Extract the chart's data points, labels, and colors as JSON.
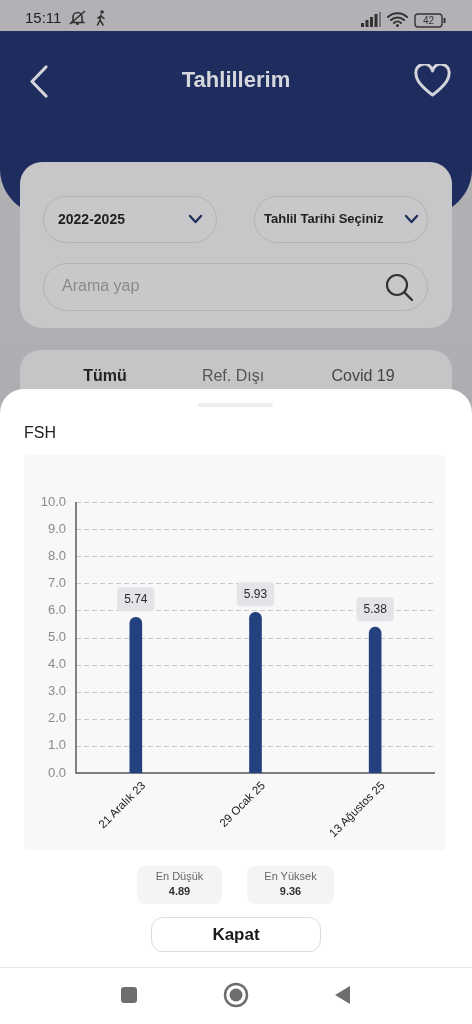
{
  "chart_data": {
    "type": "bar",
    "title": "FSH",
    "categories": [
      "21 Aralık 23",
      "29 Ocak 25",
      "13 Ağustos 25"
    ],
    "values": [
      5.74,
      5.93,
      5.38
    ],
    "color": "#23407f",
    "ylim": [
      0,
      10
    ],
    "yticks": [
      {
        "value": 0,
        "label": "0.0"
      },
      {
        "value": 1,
        "label": "1.0"
      },
      {
        "value": 2,
        "label": "2.0"
      },
      {
        "value": 3,
        "label": "3.0"
      },
      {
        "value": 4,
        "label": "4.0"
      },
      {
        "value": 5,
        "label": "5.0"
      },
      {
        "value": 6,
        "label": "6.0"
      },
      {
        "value": 7,
        "label": "7.0"
      },
      {
        "value": 8,
        "label": "8.0"
      },
      {
        "value": 9,
        "label": "9.0"
      },
      {
        "value": 10,
        "label": "10.0"
      }
    ],
    "grid": "y",
    "data_labels": true,
    "annotations": [
      "15:11",
      "42",
      "Tahlillerim",
      "2022-2025",
      "Tahlil Tarihi Seçiniz",
      "Arama yap",
      "Tümü",
      "Ref. Dışı",
      "Covid 19",
      "En Düşük",
      "4.89",
      "En Yüksek",
      "9.36",
      "Kapat"
    ]
  }
}
